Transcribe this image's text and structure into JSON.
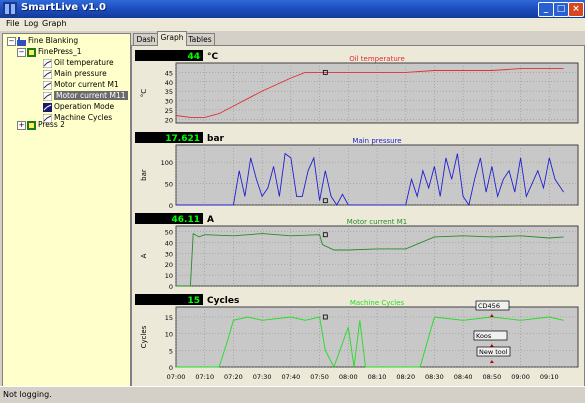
{
  "window": {
    "title": "SmartLive v1.0"
  },
  "menu": [
    {
      "label": "File"
    },
    {
      "label": "Log"
    },
    {
      "label": "Graph"
    }
  ],
  "tree": {
    "root": "Fine Blanking",
    "press1": "FinePress_1",
    "items": [
      "Oil temperature",
      "Main pressure",
      "Motor current M1",
      "Motor current M11",
      "Operation Mode",
      "Machine Cycles"
    ],
    "press2": "Press 2"
  },
  "tabs": [
    {
      "label": "Dash"
    },
    {
      "label": "Graph"
    },
    {
      "label": "Tables"
    }
  ],
  "status": "Not logging.",
  "x_ticks": [
    "07:00",
    "07:10",
    "07:20",
    "07:30",
    "07:40",
    "07:50",
    "08:00",
    "08:10",
    "08:20",
    "08:30",
    "08:40",
    "08:50",
    "09:00",
    "09:10"
  ],
  "charts": [
    {
      "value": "44",
      "unit": "°C",
      "title": "Oil temperature",
      "ylabel": "°C",
      "yticks": [
        "20",
        "25",
        "30",
        "35",
        "40",
        "45"
      ]
    },
    {
      "value": "17.621",
      "unit": "bar",
      "title": "Main pressure",
      "ylabel": "bar",
      "yticks": [
        "0",
        "50",
        "100"
      ]
    },
    {
      "value": "46.11",
      "unit": "A",
      "title": "Motor current M1",
      "ylabel": "A",
      "yticks": [
        "0",
        "10",
        "20",
        "30",
        "40",
        "50"
      ]
    },
    {
      "value": "15",
      "unit": "Cycles",
      "title": "Machine Cycles",
      "ylabel": "Cycles",
      "yticks": [
        "0",
        "5",
        "10",
        "15"
      ]
    }
  ],
  "annotations": [
    {
      "label": "CD456"
    },
    {
      "label": "Koos"
    },
    {
      "label": "New tool"
    }
  ],
  "colors": {
    "oil": "#e03030",
    "pressure": "#2020d0",
    "motor": "#2a8a2a",
    "cycles": "#22dd22",
    "plot_bg": "#c8c8c8",
    "readout_bg": "#000000",
    "readout_fg": "#00ff00"
  },
  "chart_data": [
    {
      "type": "line",
      "title": "Oil temperature",
      "ylabel": "°C",
      "ylim": [
        18,
        50
      ],
      "x": [
        "07:00",
        "07:05",
        "07:10",
        "07:15",
        "07:20",
        "07:30",
        "07:40",
        "07:45",
        "07:50",
        "08:00",
        "08:10",
        "08:20",
        "08:30",
        "08:40",
        "08:50",
        "09:00",
        "09:10",
        "09:15"
      ],
      "series": [
        {
          "values": [
            22,
            21,
            21,
            23,
            27,
            35,
            42,
            45,
            45,
            45,
            45,
            45,
            46,
            46,
            46,
            47,
            47,
            47
          ]
        }
      ]
    },
    {
      "type": "line",
      "title": "Main pressure",
      "ylabel": "bar",
      "ylim": [
        0,
        140
      ],
      "x": [
        "07:00",
        "07:20",
        "07:22",
        "07:24",
        "07:26",
        "07:28",
        "07:30",
        "07:32",
        "07:34",
        "07:36",
        "07:38",
        "07:40",
        "07:42",
        "07:44",
        "07:46",
        "07:48",
        "07:50",
        "07:52",
        "07:54",
        "07:56",
        "07:58",
        "08:00",
        "08:10",
        "08:20",
        "08:22",
        "08:24",
        "08:26",
        "08:28",
        "08:30",
        "08:32",
        "08:34",
        "08:36",
        "08:38",
        "08:40",
        "08:42",
        "08:44",
        "08:46",
        "08:48",
        "08:50",
        "08:52",
        "08:54",
        "08:56",
        "08:58",
        "09:00",
        "09:02",
        "09:04",
        "09:06",
        "09:08",
        "09:10",
        "09:12",
        "09:15"
      ],
      "series": [
        {
          "values": [
            0,
            0,
            80,
            20,
            110,
            60,
            20,
            40,
            90,
            20,
            120,
            110,
            20,
            20,
            80,
            110,
            10,
            80,
            20,
            0,
            25,
            0,
            0,
            0,
            60,
            20,
            80,
            40,
            90,
            20,
            110,
            60,
            120,
            20,
            0,
            60,
            110,
            30,
            90,
            20,
            60,
            80,
            30,
            110,
            20,
            50,
            80,
            40,
            110,
            60,
            30
          ]
        }
      ]
    },
    {
      "type": "line",
      "title": "Motor current M1",
      "ylabel": "A",
      "ylim": [
        0,
        55
      ],
      "x": [
        "07:00",
        "07:05",
        "07:06",
        "07:08",
        "07:10",
        "07:20",
        "07:30",
        "07:40",
        "07:50",
        "07:51",
        "07:55",
        "08:00",
        "08:10",
        "08:20",
        "08:30",
        "08:40",
        "08:50",
        "09:00",
        "09:10",
        "09:15"
      ],
      "series": [
        {
          "values": [
            0,
            0,
            48,
            45,
            47,
            46,
            48,
            46,
            47,
            38,
            33,
            33,
            34,
            34,
            45,
            46,
            45,
            46,
            44,
            45
          ]
        }
      ]
    },
    {
      "type": "line",
      "title": "Machine Cycles",
      "ylabel": "Cycles",
      "ylim": [
        0,
        18
      ],
      "x": [
        "07:00",
        "07:10",
        "07:15",
        "07:18",
        "07:20",
        "07:25",
        "07:30",
        "07:40",
        "07:45",
        "07:50",
        "07:52",
        "07:55",
        "08:00",
        "08:02",
        "08:04",
        "08:06",
        "08:10",
        "08:20",
        "08:25",
        "08:30",
        "08:40",
        "08:50",
        "09:00",
        "09:10",
        "09:15"
      ],
      "series": [
        {
          "values": [
            0,
            0,
            0,
            8,
            14,
            15,
            14,
            15,
            14,
            15,
            5,
            0,
            12,
            0,
            14,
            0,
            0,
            0,
            0,
            15,
            14,
            15,
            14,
            15,
            14
          ]
        }
      ]
    }
  ]
}
